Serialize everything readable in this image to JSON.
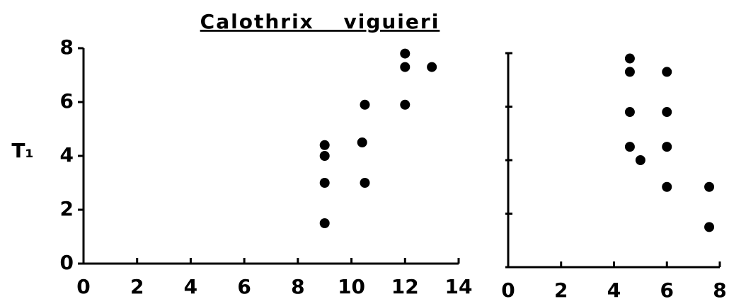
{
  "chart_data": [
    {
      "type": "scatter",
      "title": "Calothrix viguieri",
      "ylabel": "T₁",
      "x": [
        9,
        9,
        9,
        9,
        10.4,
        10.5,
        10.5,
        12,
        12,
        12,
        13
      ],
      "values": [
        1.5,
        3,
        4,
        4.4,
        4.5,
        3,
        5.9,
        5.9,
        7.3,
        7.8,
        7.3
      ],
      "color": "#000000",
      "xlim": [
        0,
        14
      ],
      "xticks": [
        0,
        2,
        4,
        6,
        8,
        10,
        12,
        14
      ],
      "ylim": [
        0,
        8
      ],
      "yticks": [
        0,
        2,
        4,
        6,
        8
      ]
    },
    {
      "type": "scatter",
      "x": [
        4.6,
        4.6,
        4.6,
        4.6,
        5,
        6,
        6,
        6,
        6,
        7.6,
        7.6
      ],
      "values": [
        7.8,
        7.3,
        5.8,
        4.5,
        4.0,
        7.3,
        5.8,
        4.5,
        3,
        3,
        1.5
      ],
      "color": "#000000",
      "xlim": [
        0,
        8
      ],
      "xticks": [
        0,
        2,
        4,
        6,
        8
      ],
      "ylim": [
        0,
        8
      ],
      "yticks": [
        0,
        2,
        4,
        6,
        8
      ]
    }
  ]
}
